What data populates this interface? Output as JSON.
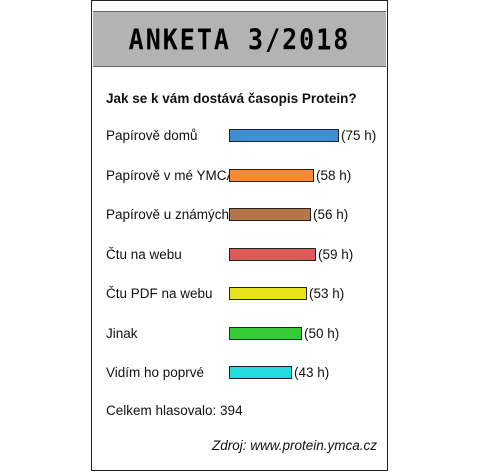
{
  "header": {
    "title": "ANKETA 3/2018"
  },
  "chart_data": {
    "type": "bar",
    "orientation": "horizontal",
    "title": "Jak se k vám dostává časopis Protein?",
    "categories": [
      "Papírově domů",
      "Papírově v mé YMCA",
      "Papírově u známých",
      "Čtu na webu",
      "Čtu PDF na webu",
      "Jinak",
      "Vidím ho poprvé"
    ],
    "values": [
      75,
      58,
      56,
      59,
      53,
      50,
      43
    ],
    "value_labels": [
      "(75 h)",
      "(58 h)",
      "(56 h)",
      "(59 h)",
      "(53 h)",
      "(50 h)",
      "(43 h)"
    ],
    "colors": [
      "#3f8fd8",
      "#f58a33",
      "#b5774a",
      "#e0595a",
      "#e6e21c",
      "#33cc33",
      "#22dddd"
    ]
  },
  "footer": {
    "total": "Celkem hlasovalo: 394",
    "source": "Zdroj: www.protein.ymca.cz"
  }
}
